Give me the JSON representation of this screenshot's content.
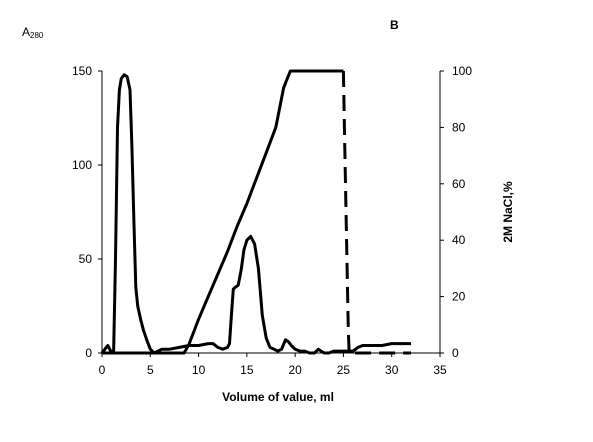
{
  "chart_data": {
    "type": "line",
    "panel_label": "B",
    "xlabel": "Volume of value, ml",
    "ylabel_left_main": "A",
    "ylabel_left_sub": "280",
    "ylabel_right": "2M NaCl,%",
    "xlim": [
      0,
      35
    ],
    "ylim_left": [
      0,
      150
    ],
    "ylim_right": [
      0,
      100
    ],
    "xticks": [
      0,
      5,
      10,
      15,
      20,
      25,
      30,
      35
    ],
    "yticks_left": [
      0,
      50,
      100,
      150
    ],
    "yticks_right": [
      0,
      20,
      40,
      60,
      80,
      100
    ],
    "grid": false,
    "legend": "none",
    "line_color": "#000000",
    "series": [
      {
        "axis": "left",
        "style": "solid",
        "x": [
          0,
          0.3,
          0.6,
          0.9,
          1.2,
          1.4,
          1.6,
          1.8,
          2.0,
          2.3,
          2.6,
          2.9,
          3.1,
          3.3,
          3.5,
          3.7,
          4.0,
          4.3,
          4.7,
          5.0,
          5.4,
          5.8,
          6.2,
          7.0,
          8.0,
          9.0,
          10.0,
          11.0,
          11.5,
          12.0,
          12.5,
          13.0,
          13.2,
          13.4,
          13.6,
          13.8,
          14.1,
          14.4,
          14.7,
          15.0,
          15.4,
          15.8,
          16.2,
          16.6,
          17.0,
          17.4,
          17.8,
          18.2,
          18.6,
          19.0,
          19.3,
          19.6,
          20.0,
          20.5,
          21.0,
          21.5,
          22.0,
          22.4,
          22.7,
          23.0,
          23.5,
          24.0,
          25.0,
          26.0,
          26.5,
          27.0,
          28.0,
          29.0,
          30.0,
          31.0,
          32.0
        ],
        "y": [
          0,
          2,
          4,
          1,
          0,
          50,
          120,
          140,
          146,
          148,
          147,
          140,
          110,
          70,
          35,
          25,
          18,
          12,
          6,
          2,
          0,
          1,
          2,
          2,
          3,
          4,
          4,
          5,
          5,
          3,
          2,
          3,
          5,
          20,
          34,
          35,
          36,
          44,
          55,
          60,
          62,
          58,
          45,
          20,
          8,
          3,
          2,
          1,
          2,
          7,
          6,
          4,
          2,
          1,
          1,
          0,
          0,
          2,
          1,
          0,
          0,
          1,
          1,
          1,
          3,
          4,
          4,
          4,
          5,
          5,
          5
        ]
      },
      {
        "axis": "right",
        "style": "solid",
        "x": [
          0,
          8.5,
          9.0,
          10.0,
          11.0,
          12.0,
          13.0,
          14.0,
          15.0,
          16.0,
          17.0,
          18.0,
          18.8,
          19.5,
          22.0,
          24.0,
          25.0
        ],
        "y": [
          0,
          0,
          3,
          12,
          20,
          28,
          36,
          45,
          53,
          62,
          71,
          80,
          94,
          100,
          100,
          100,
          100
        ]
      },
      {
        "axis": "right",
        "style": "dashed",
        "x": [
          25.0,
          25.1,
          25.3,
          25.5,
          25.6,
          26.0,
          28.0,
          30.0,
          32.0
        ],
        "y": [
          100,
          80,
          45,
          8,
          0,
          0,
          0,
          0,
          0
        ]
      }
    ]
  }
}
